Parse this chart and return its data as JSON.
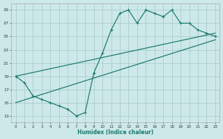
{
  "xlabel": "Humidex (Indice chaleur)",
  "bg_color": "#cde8e8",
  "grid_color": "#aacccc",
  "line_color": "#1a7a6e",
  "xlim": [
    -0.5,
    23.5
  ],
  "ylim": [
    12,
    30
  ],
  "xticks": [
    0,
    1,
    2,
    3,
    4,
    5,
    6,
    7,
    8,
    9,
    10,
    11,
    12,
    13,
    14,
    15,
    16,
    17,
    18,
    19,
    20,
    21,
    22,
    23
  ],
  "yticks": [
    13,
    15,
    17,
    19,
    21,
    23,
    25,
    27,
    29
  ],
  "main_x": [
    0,
    1,
    2,
    3,
    4,
    5,
    6,
    7,
    8,
    9,
    10,
    11,
    12,
    13,
    14,
    15,
    16,
    17,
    18,
    19,
    20,
    21,
    22,
    23
  ],
  "main_y": [
    19,
    18,
    16,
    15.5,
    15,
    14.5,
    14,
    13,
    13.5,
    19.5,
    22.5,
    26,
    28.5,
    29,
    27,
    29,
    28.5,
    28,
    29,
    27,
    27,
    26,
    25.5,
    25
  ],
  "upper_line_x": [
    0,
    23
  ],
  "upper_line_y": [
    19.0,
    25.5
  ],
  "lower_line_x": [
    0,
    23
  ],
  "lower_line_y": [
    15.0,
    24.5
  ]
}
